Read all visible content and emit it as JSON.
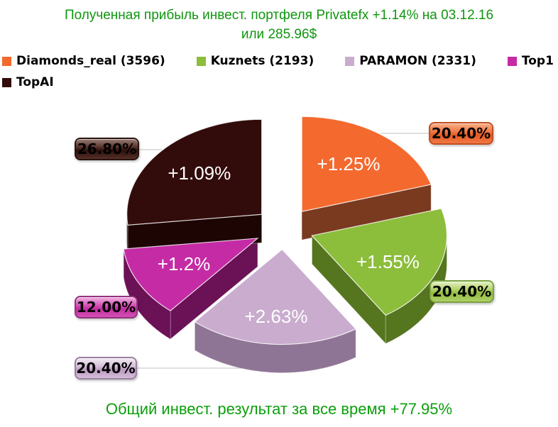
{
  "chart_data": {
    "type": "pie",
    "style": "3d-exploded",
    "title_line1": "Полученная прибыль инвест. портфеля Privatefx +1.14% на 03.12.16",
    "title_line2": "или 285.96$",
    "footer": "Общий инвест. результат за все время +77.95%",
    "title_color": "#0F960F",
    "footer_color": "#0BA00B",
    "label_color": "#FFFFFF",
    "legend_position": "top",
    "slices": [
      {
        "key": "diamonds-real",
        "legend_label": "Diamonds_real (3596)",
        "share_pct": 20.4,
        "callout_label": "20.40%",
        "profit_label": "+1.25%",
        "color": "#F4692E",
        "side_color": "#7A3A20",
        "badge": {
          "light": "#F8B088",
          "mid": "#F07845",
          "dark": "#E45A22",
          "border": "#C04E22"
        }
      },
      {
        "key": "kuznets",
        "legend_label": "Kuznets (2193)",
        "share_pct": 20.4,
        "callout_label": "20.40%",
        "profit_label": "+1.55%",
        "color": "#8CBD3B",
        "side_color": "#55751F",
        "badge": {
          "light": "#E4F1C4",
          "mid": "#AFD066",
          "dark": "#8FBA41",
          "border": "#7BA140"
        }
      },
      {
        "key": "paramon",
        "legend_label": "PARAMON (2331)",
        "share_pct": 20.4,
        "callout_label": "20.40%",
        "profit_label": "+2.63%",
        "color": "#C9ACCE",
        "side_color": "#8F7595",
        "badge": {
          "light": "#F2EAF3",
          "mid": "#D5BDD9",
          "dark": "#BB99C1",
          "border": "#9A81A0"
        }
      },
      {
        "key": "top1",
        "legend_label": "Top1",
        "share_pct": 12.0,
        "callout_label": "12.00%",
        "profit_label": "+1.2%",
        "color": "#C52BA5",
        "side_color": "#6B1156",
        "badge": {
          "light": "#F0B2E0",
          "mid": "#D44FB5",
          "dark": "#C12F9F",
          "border": "#93347E"
        }
      },
      {
        "key": "topai",
        "legend_label": "TopAI",
        "share_pct": 26.8,
        "callout_label": "26.80%",
        "profit_label": "+1.09%",
        "color": "#320C0B",
        "side_color": "#1D0503",
        "badge": {
          "light": "#9A8076",
          "mid": "#553028",
          "dark": "#2B100B",
          "border": "#2A1410"
        }
      }
    ]
  }
}
